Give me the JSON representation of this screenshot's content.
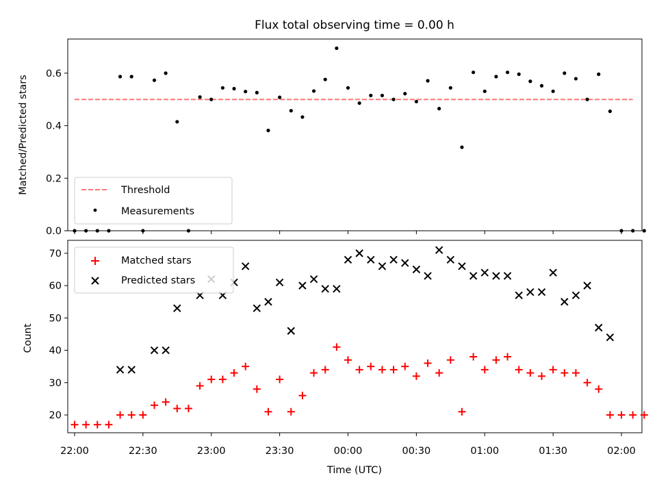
{
  "title": "Flux total observing time = 0.00 h",
  "chart_data": [
    {
      "type": "scatter",
      "ylabel": "Matched/Predicted stars",
      "xlabel": "",
      "xlim": [
        "21:57",
        "02:09"
      ],
      "ylim": [
        0,
        0.73
      ],
      "yticks": [
        0.0,
        0.2,
        0.4,
        0.6
      ],
      "ytick_labels": [
        "0.0",
        "0.2",
        "0.4",
        "0.6"
      ],
      "legend_position": "lower-left",
      "series": [
        {
          "name": "Threshold",
          "kind": "line",
          "style": "dashed",
          "color": "#ff7777",
          "points": [
            {
              "x": "22:00",
              "y": 0.5
            },
            {
              "x": "02:05",
              "y": 0.5
            }
          ]
        },
        {
          "name": "Measurements",
          "kind": "scatter",
          "marker": "dot",
          "color": "#000000",
          "points": [
            {
              "x": "22:00",
              "y": 0.0
            },
            {
              "x": "22:05",
              "y": 0.0
            },
            {
              "x": "22:10",
              "y": 0.0
            },
            {
              "x": "22:15",
              "y": 0.0
            },
            {
              "x": "22:20",
              "y": 0.587
            },
            {
              "x": "22:25",
              "y": 0.587
            },
            {
              "x": "22:30",
              "y": 0.0
            },
            {
              "x": "22:35",
              "y": 0.573
            },
            {
              "x": "22:40",
              "y": 0.6
            },
            {
              "x": "22:45",
              "y": 0.415
            },
            {
              "x": "22:50",
              "y": 0.0
            },
            {
              "x": "22:55",
              "y": 0.509
            },
            {
              "x": "23:00",
              "y": 0.5
            },
            {
              "x": "23:05",
              "y": 0.544
            },
            {
              "x": "23:10",
              "y": 0.541
            },
            {
              "x": "23:15",
              "y": 0.53
            },
            {
              "x": "23:20",
              "y": 0.526
            },
            {
              "x": "23:25",
              "y": 0.382
            },
            {
              "x": "23:30",
              "y": 0.508
            },
            {
              "x": "23:35",
              "y": 0.457
            },
            {
              "x": "23:40",
              "y": 0.433
            },
            {
              "x": "23:45",
              "y": 0.532
            },
            {
              "x": "23:50",
              "y": 0.576
            },
            {
              "x": "23:55",
              "y": 0.695
            },
            {
              "x": "00:00",
              "y": 0.544
            },
            {
              "x": "00:05",
              "y": 0.486
            },
            {
              "x": "00:10",
              "y": 0.515
            },
            {
              "x": "00:15",
              "y": 0.515
            },
            {
              "x": "00:20",
              "y": 0.5
            },
            {
              "x": "00:25",
              "y": 0.522
            },
            {
              "x": "00:30",
              "y": 0.492
            },
            {
              "x": "00:35",
              "y": 0.571
            },
            {
              "x": "00:40",
              "y": 0.465
            },
            {
              "x": "00:45",
              "y": 0.544
            },
            {
              "x": "00:50",
              "y": 0.318
            },
            {
              "x": "00:55",
              "y": 0.603
            },
            {
              "x": "01:00",
              "y": 0.531
            },
            {
              "x": "01:05",
              "y": 0.587
            },
            {
              "x": "01:10",
              "y": 0.603
            },
            {
              "x": "01:15",
              "y": 0.596
            },
            {
              "x": "01:20",
              "y": 0.569
            },
            {
              "x": "01:25",
              "y": 0.552
            },
            {
              "x": "01:30",
              "y": 0.531
            },
            {
              "x": "01:35",
              "y": 0.6
            },
            {
              "x": "01:40",
              "y": 0.579
            },
            {
              "x": "01:45",
              "y": 0.5
            },
            {
              "x": "01:50",
              "y": 0.596
            },
            {
              "x": "01:55",
              "y": 0.455
            },
            {
              "x": "02:00",
              "y": 0.0
            },
            {
              "x": "02:05",
              "y": 0.0
            },
            {
              "x": "02:10",
              "y": 0.0
            }
          ]
        }
      ]
    },
    {
      "type": "scatter",
      "xlabel": "Time (UTC)",
      "ylabel": "Count",
      "xlim": [
        "21:57",
        "02:09"
      ],
      "ylim": [
        14.5,
        74
      ],
      "yticks": [
        20,
        30,
        40,
        50,
        60,
        70
      ],
      "ytick_labels": [
        "20",
        "30",
        "40",
        "50",
        "60",
        "70"
      ],
      "xticks": [
        "22:00",
        "22:30",
        "23:00",
        "23:30",
        "00:00",
        "00:30",
        "01:00",
        "01:30",
        "02:00"
      ],
      "legend_position": "upper-left",
      "series": [
        {
          "name": "Matched stars",
          "kind": "scatter",
          "marker": "plus",
          "color": "#ff0000",
          "points": [
            {
              "x": "22:00",
              "y": 17
            },
            {
              "x": "22:05",
              "y": 17
            },
            {
              "x": "22:10",
              "y": 17
            },
            {
              "x": "22:15",
              "y": 17
            },
            {
              "x": "22:20",
              "y": 20
            },
            {
              "x": "22:25",
              "y": 20
            },
            {
              "x": "22:30",
              "y": 20
            },
            {
              "x": "22:35",
              "y": 23
            },
            {
              "x": "22:40",
              "y": 24
            },
            {
              "x": "22:45",
              "y": 22
            },
            {
              "x": "22:50",
              "y": 22
            },
            {
              "x": "22:55",
              "y": 29
            },
            {
              "x": "23:00",
              "y": 31
            },
            {
              "x": "23:05",
              "y": 31
            },
            {
              "x": "23:10",
              "y": 33
            },
            {
              "x": "23:15",
              "y": 35
            },
            {
              "x": "23:20",
              "y": 28
            },
            {
              "x": "23:25",
              "y": 21
            },
            {
              "x": "23:30",
              "y": 31
            },
            {
              "x": "23:35",
              "y": 21
            },
            {
              "x": "23:40",
              "y": 26
            },
            {
              "x": "23:45",
              "y": 33
            },
            {
              "x": "23:50",
              "y": 34
            },
            {
              "x": "23:55",
              "y": 41
            },
            {
              "x": "00:00",
              "y": 37
            },
            {
              "x": "00:05",
              "y": 34
            },
            {
              "x": "00:10",
              "y": 35
            },
            {
              "x": "00:15",
              "y": 34
            },
            {
              "x": "00:20",
              "y": 34
            },
            {
              "x": "00:25",
              "y": 35
            },
            {
              "x": "00:30",
              "y": 32
            },
            {
              "x": "00:35",
              "y": 36
            },
            {
              "x": "00:40",
              "y": 33
            },
            {
              "x": "00:45",
              "y": 37
            },
            {
              "x": "00:50",
              "y": 21
            },
            {
              "x": "00:55",
              "y": 38
            },
            {
              "x": "01:00",
              "y": 34
            },
            {
              "x": "01:05",
              "y": 37
            },
            {
              "x": "01:10",
              "y": 38
            },
            {
              "x": "01:15",
              "y": 34
            },
            {
              "x": "01:20",
              "y": 33
            },
            {
              "x": "01:25",
              "y": 32
            },
            {
              "x": "01:30",
              "y": 34
            },
            {
              "x": "01:35",
              "y": 33
            },
            {
              "x": "01:40",
              "y": 33
            },
            {
              "x": "01:45",
              "y": 30
            },
            {
              "x": "01:50",
              "y": 28
            },
            {
              "x": "01:55",
              "y": 20
            },
            {
              "x": "02:00",
              "y": 20
            },
            {
              "x": "02:05",
              "y": 20
            },
            {
              "x": "02:10",
              "y": 20
            }
          ]
        },
        {
          "name": "Predicted stars",
          "kind": "scatter",
          "marker": "x",
          "color": "#000000",
          "points": [
            {
              "x": "22:20",
              "y": 34
            },
            {
              "x": "22:25",
              "y": 34
            },
            {
              "x": "22:35",
              "y": 40
            },
            {
              "x": "22:40",
              "y": 40
            },
            {
              "x": "22:45",
              "y": 53
            },
            {
              "x": "22:55",
              "y": 57
            },
            {
              "x": "23:00",
              "y": 62
            },
            {
              "x": "23:05",
              "y": 57
            },
            {
              "x": "23:10",
              "y": 61
            },
            {
              "x": "23:15",
              "y": 66
            },
            {
              "x": "23:20",
              "y": 53
            },
            {
              "x": "23:25",
              "y": 55
            },
            {
              "x": "23:30",
              "y": 61
            },
            {
              "x": "23:35",
              "y": 46
            },
            {
              "x": "23:40",
              "y": 60
            },
            {
              "x": "23:45",
              "y": 62
            },
            {
              "x": "23:50",
              "y": 59
            },
            {
              "x": "23:55",
              "y": 59
            },
            {
              "x": "00:00",
              "y": 68
            },
            {
              "x": "00:05",
              "y": 70
            },
            {
              "x": "00:10",
              "y": 68
            },
            {
              "x": "00:15",
              "y": 66
            },
            {
              "x": "00:20",
              "y": 68
            },
            {
              "x": "00:25",
              "y": 67
            },
            {
              "x": "00:30",
              "y": 65
            },
            {
              "x": "00:35",
              "y": 63
            },
            {
              "x": "00:40",
              "y": 71
            },
            {
              "x": "00:45",
              "y": 68
            },
            {
              "x": "00:50",
              "y": 66
            },
            {
              "x": "00:55",
              "y": 63
            },
            {
              "x": "01:00",
              "y": 64
            },
            {
              "x": "01:05",
              "y": 63
            },
            {
              "x": "01:10",
              "y": 63
            },
            {
              "x": "01:15",
              "y": 57
            },
            {
              "x": "01:20",
              "y": 58
            },
            {
              "x": "01:25",
              "y": 58
            },
            {
              "x": "01:30",
              "y": 64
            },
            {
              "x": "01:35",
              "y": 55
            },
            {
              "x": "01:40",
              "y": 57
            },
            {
              "x": "01:45",
              "y": 60
            },
            {
              "x": "01:50",
              "y": 47
            },
            {
              "x": "01:55",
              "y": 44
            }
          ]
        }
      ]
    }
  ]
}
